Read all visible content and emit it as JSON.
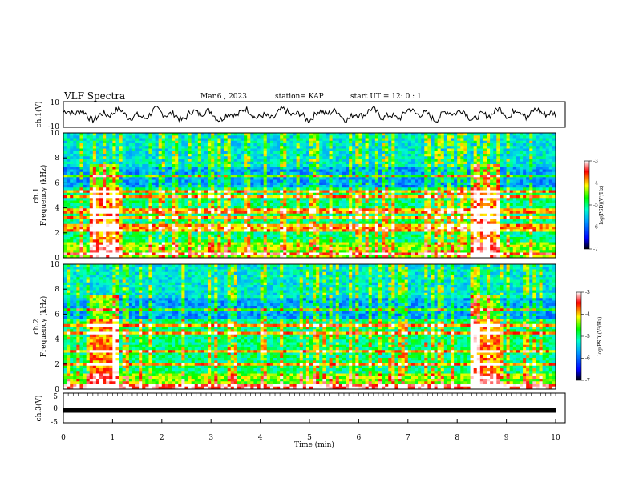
{
  "header": {
    "title": "VLF Spectra",
    "date": "Mar.6 , 2023",
    "station": "station= KAP",
    "start_time": "start UT = 12: 0 : 1"
  },
  "colors": {
    "colormap": [
      "#000000",
      "#0000ff",
      "#00a0ff",
      "#00ffcc",
      "#00ff00",
      "#ffff00",
      "#ff0000",
      "#ffffff"
    ],
    "trace": "#000000"
  },
  "chart_data": [
    {
      "type": "line",
      "ylabel": "ch.1(V)",
      "ylim": [
        -10,
        10
      ],
      "yticks": [
        "10",
        "-10"
      ],
      "xlim": [
        0,
        10
      ],
      "note_hidden": ""
    },
    {
      "type": "heatmap",
      "ylabel": "ch.1\nFrequency (kHz)",
      "ylabel_channel": "ch.1",
      "ylabel_freq": "Frequency (kHz)",
      "ylim": [
        0,
        10
      ],
      "yticks": [
        "0",
        "2",
        "4",
        "6",
        "8",
        "10"
      ],
      "xlim": [
        0,
        10
      ],
      "colorbar": {
        "label": "log(PSD)(V²/Hz)",
        "range": [
          -7,
          -3
        ],
        "ticks": [
          "-3",
          "-4",
          "-5",
          "-6",
          "-7"
        ]
      },
      "bursts_min": [
        [
          0.55,
          1.15
        ],
        [
          8.3,
          8.85
        ]
      ],
      "lines_khz": [
        0.3,
        2.1,
        2.5,
        3.2,
        3.75,
        4.9,
        5.3,
        6.5
      ]
    },
    {
      "type": "heatmap",
      "ylabel_channel": "ch.2",
      "ylabel_freq": "Frequency (kHz)",
      "ylim": [
        0,
        10
      ],
      "yticks": [
        "0",
        "2",
        "4",
        "6",
        "8",
        "10"
      ],
      "xlim": [
        0,
        10
      ],
      "colorbar": {
        "label": "log(PSD)(V²/Hz)",
        "range": [
          -7,
          -3
        ],
        "ticks": [
          "-3",
          "-4",
          "-5",
          "-6",
          "-7"
        ]
      },
      "bursts_min": [
        [
          0.55,
          1.15
        ],
        [
          8.3,
          8.85
        ]
      ],
      "lines_khz": [
        0.2,
        1.9,
        3.0,
        4.5,
        5.1,
        6.4
      ]
    },
    {
      "type": "line",
      "ylabel": "ch.3(V)",
      "ylim": [
        -5,
        5
      ],
      "yticks": [
        "5",
        "0",
        "-5"
      ],
      "xlim": [
        0,
        10
      ],
      "xticks": [
        "0",
        "1",
        "2",
        "3",
        "4",
        "5",
        "6",
        "7",
        "8",
        "9",
        "10"
      ],
      "xlabel": "Time (min)",
      "constant_value": -0.8
    }
  ]
}
